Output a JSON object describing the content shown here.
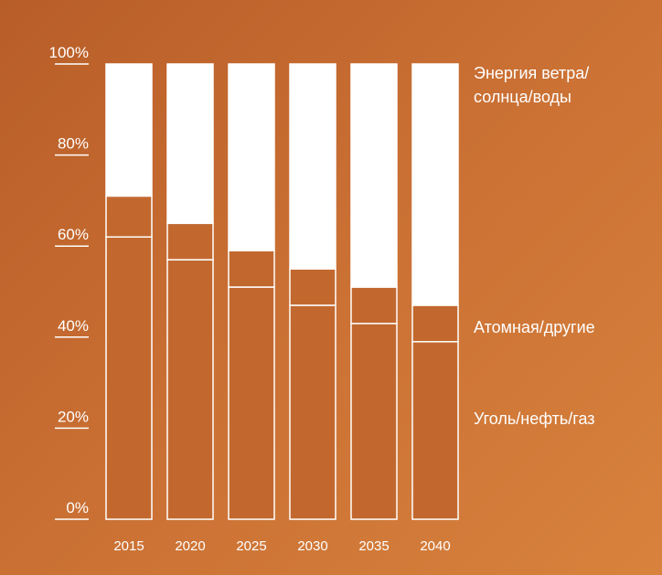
{
  "chart_data": {
    "type": "bar",
    "stacked": true,
    "categories": [
      "2015",
      "2020",
      "2025",
      "2030",
      "2035",
      "2040"
    ],
    "series": [
      {
        "name": "Уголь/нефть/газ",
        "values": [
          62,
          57,
          51,
          47,
          43,
          39
        ],
        "fill": "#c2682f"
      },
      {
        "name": "Атомная/другие",
        "values": [
          9,
          8,
          8,
          8,
          8,
          8
        ],
        "fill": "#c2682f"
      },
      {
        "name": "Энергия ветра/солнца/воды",
        "values": [
          29,
          35,
          41,
          45,
          49,
          53
        ],
        "fill": "#ffffff"
      }
    ],
    "yticks": [
      "0%",
      "20%",
      "40%",
      "60%",
      "80%",
      "100%"
    ],
    "ylim": [
      0,
      100
    ],
    "legend": {
      "position": "right",
      "lines": [
        {
          "key": "renewables_1",
          "text": "Энергия ветра/"
        },
        {
          "key": "renewables_2",
          "text": "солнца/воды"
        },
        {
          "key": "nuclear",
          "text": "Атомная/другие"
        },
        {
          "key": "fossil",
          "text": "Уголь/нефть/газ"
        }
      ]
    },
    "colors": {
      "background": "#c56b31",
      "bar_outline": "#ffffff"
    }
  }
}
